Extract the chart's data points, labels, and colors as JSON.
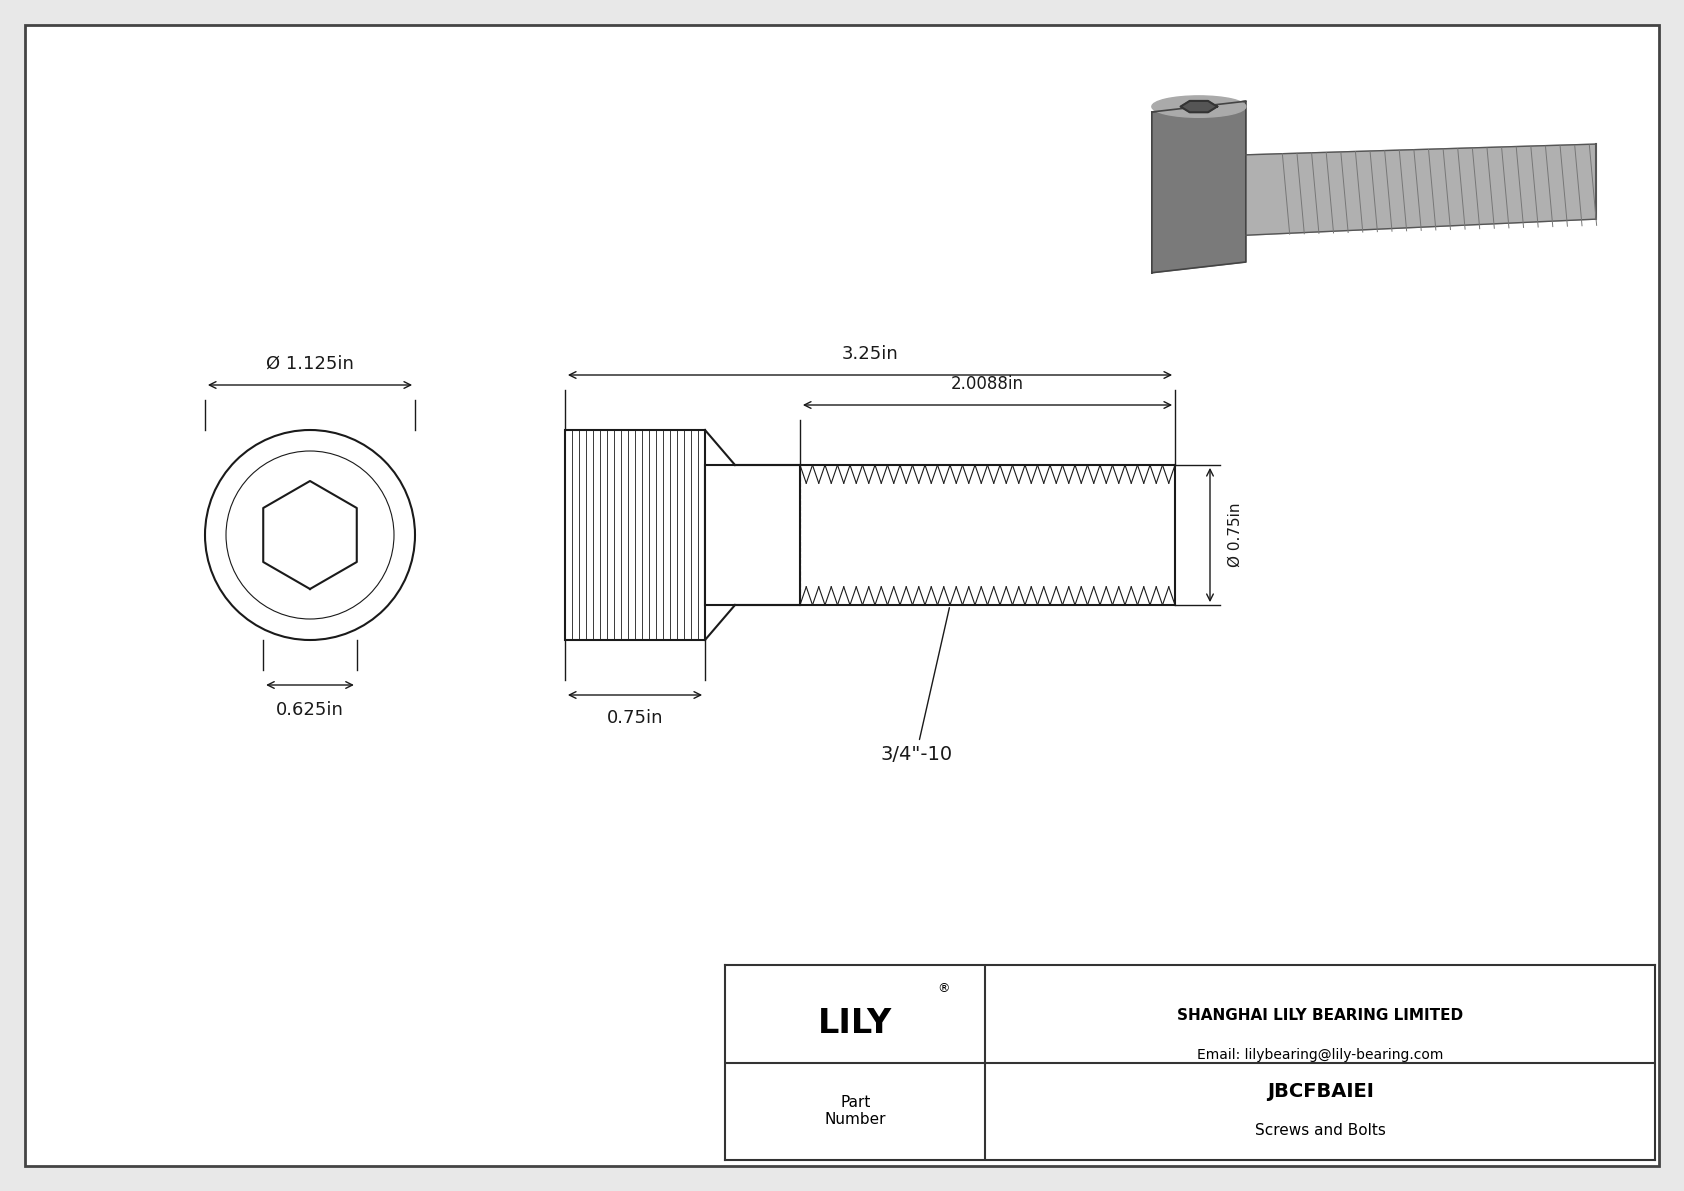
{
  "bg_color": "#e8e8e8",
  "drawing_bg": "#ffffff",
  "line_color": "#1a1a1a",
  "title": "JBCFBAIEI",
  "subtitle": "Screws and Bolts",
  "company": "SHANGHAI LILY BEARING LIMITED",
  "email": "Email: lilybearing@lily-bearing.com",
  "brand": "LILY",
  "part_label": "Part\nNumber",
  "dim_outer_dia": "Ø 1.125in",
  "dim_hex_width": "0.625in",
  "dim_head_len": "0.75in",
  "dim_total_len": "3.25in",
  "dim_thread_len": "2.0088in",
  "dim_shaft_dia": "Ø 0.75in",
  "dim_thread_label": "3/4\"-10",
  "border_color": "#444444",
  "border_lw": 2.0,
  "lw_main": 1.5,
  "lw_thin": 0.8,
  "lw_dim": 1.0
}
